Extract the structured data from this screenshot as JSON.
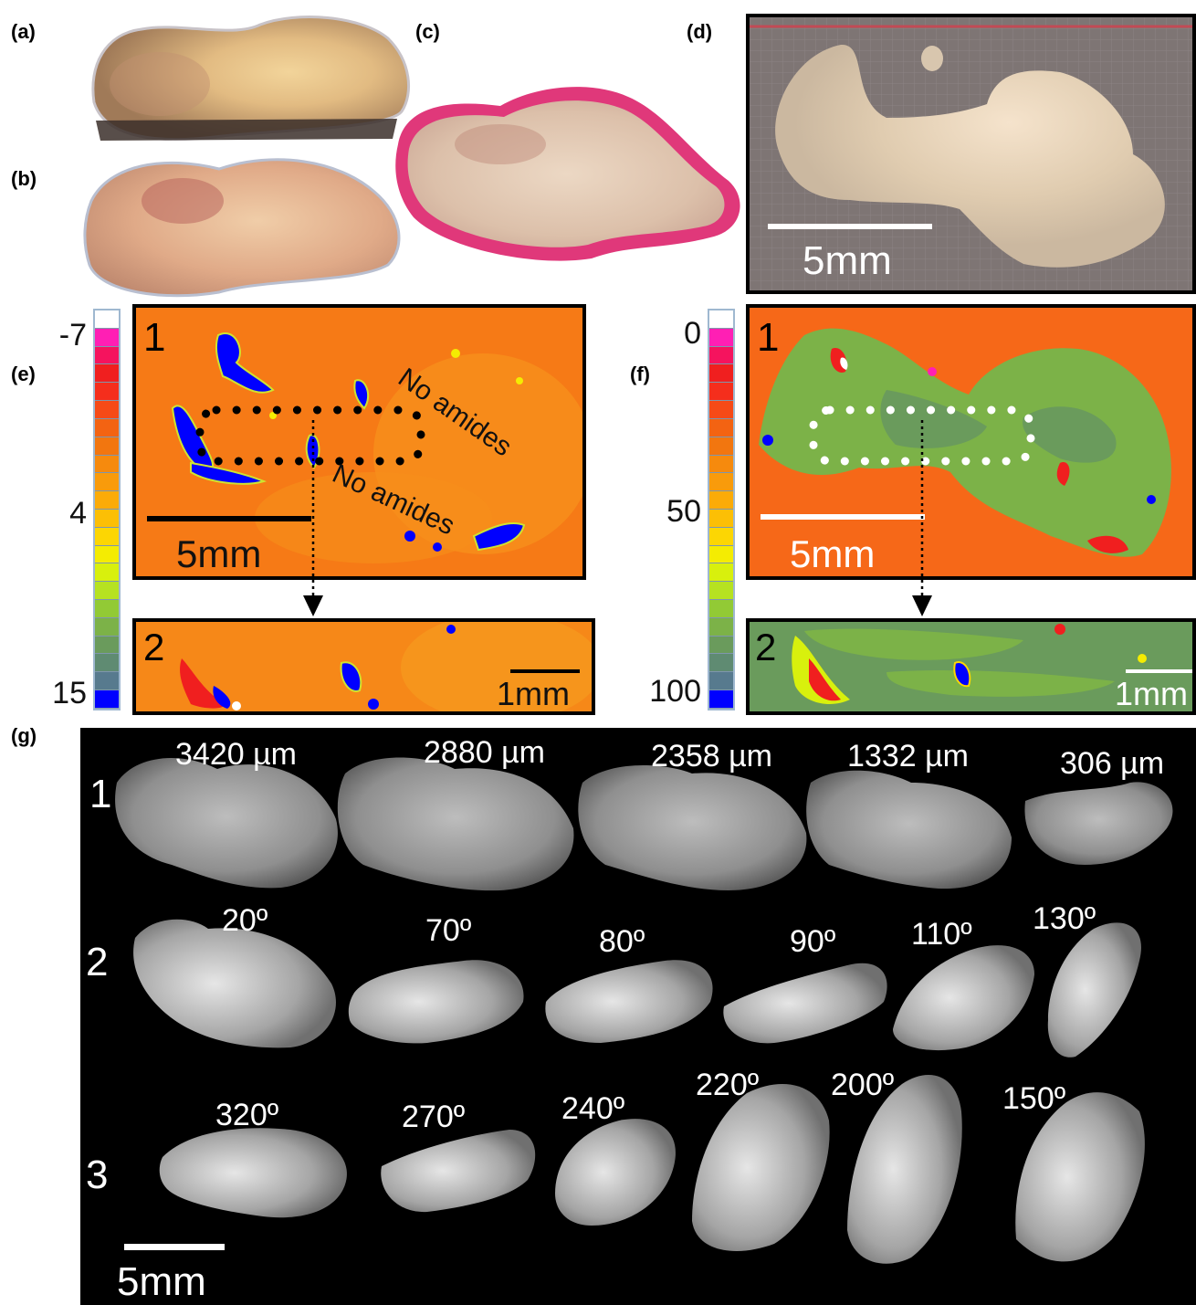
{
  "panels": {
    "a": "(a)",
    "b": "(b)",
    "c": "(c)",
    "d": "(d)",
    "e": "(e)",
    "f": "(f)",
    "g": "(g)"
  },
  "panel_d": {
    "scale": "5mm"
  },
  "panel_e": {
    "colorbar_ticks": [
      "-7",
      "4",
      "15"
    ],
    "colorbar_colors": [
      "#ffffff",
      "#ff1fb4",
      "#f5135e",
      "#f01f1f",
      "#f52e1c",
      "#f64a17",
      "#f36312",
      "#f2760f",
      "#f68a0d",
      "#f99b0b",
      "#fbab08",
      "#fcbf05",
      "#fcd603",
      "#f4ec02",
      "#d8f00d",
      "#b6e221",
      "#92ca35",
      "#7cb248",
      "#6a9b5c",
      "#5f8b72",
      "#577a8e",
      "#0000ff"
    ],
    "map1_label": "1",
    "map1_text1": "No amides",
    "map1_text2": "No amides",
    "map1_scale": "5mm",
    "map2_label": "2",
    "map2_scale": "1mm"
  },
  "panel_f": {
    "colorbar_ticks": [
      "0",
      "50",
      "100"
    ],
    "map1_label": "1",
    "map1_scale": "5mm",
    "map2_label": "2",
    "map2_scale": "1mm"
  },
  "panel_g": {
    "row_labels": [
      "1",
      "2",
      "3"
    ],
    "row1": [
      "3420 µm",
      "2880 µm",
      "2358 µm",
      "1332 µm",
      "306 µm"
    ],
    "row2": [
      "20º",
      "70º",
      "80º",
      "90º",
      "110º",
      "130º"
    ],
    "row3": [
      "320º",
      "270º",
      "240º",
      "220º",
      "200º",
      "150º"
    ],
    "scale": "5mm"
  }
}
